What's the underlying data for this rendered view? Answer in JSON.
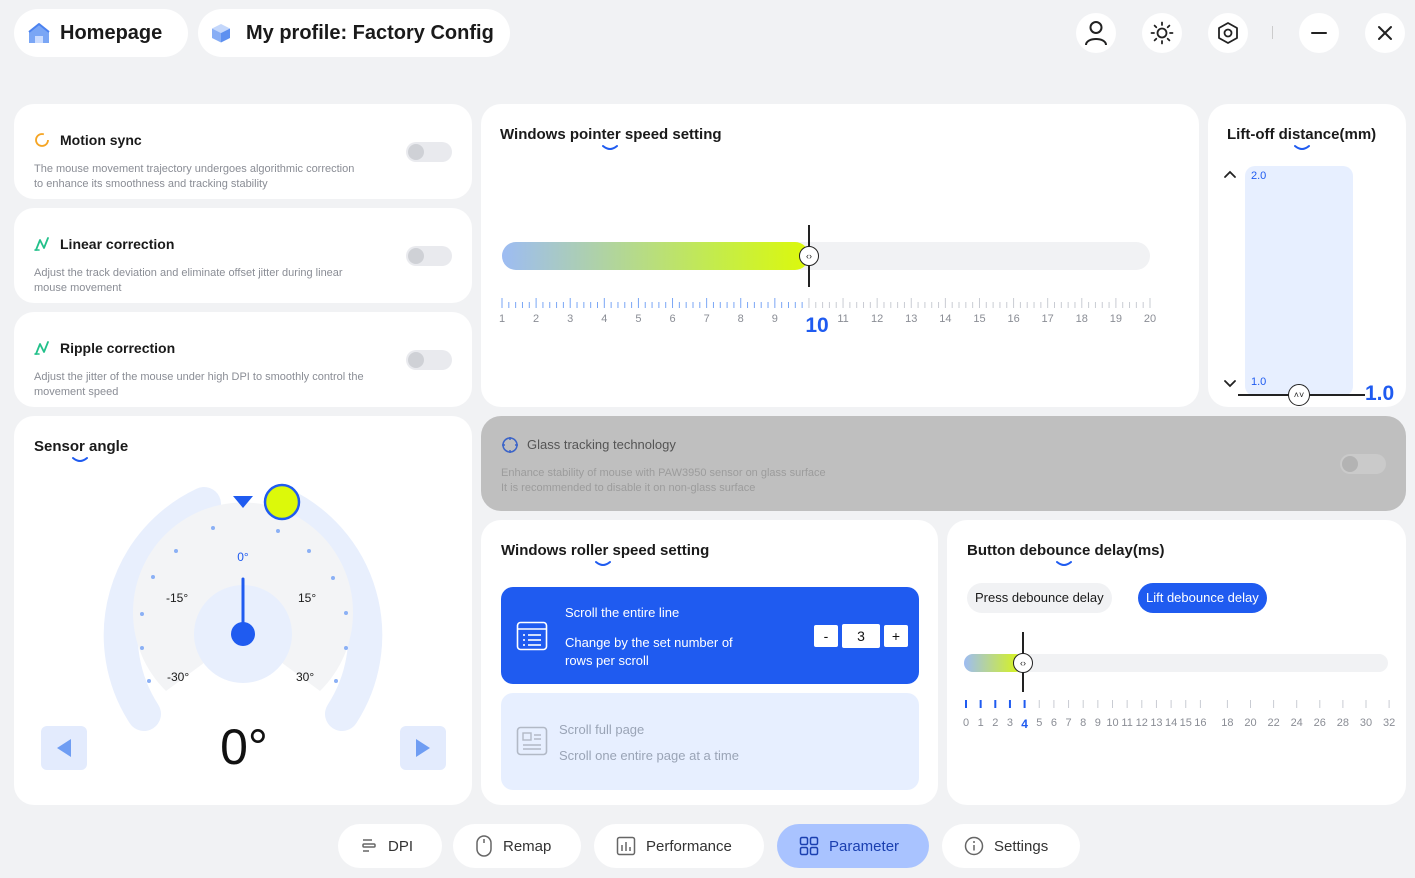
{
  "header": {
    "home_label": "Homepage",
    "profile_label": "My profile: Factory Config"
  },
  "motion_sync": {
    "title": "Motion sync",
    "desc_line1": "The mouse movement trajectory undergoes algorithmic correction",
    "desc_line2": "to enhance its smoothness and tracking stability",
    "enabled": false
  },
  "linear_correction": {
    "title": "Linear correction",
    "desc_line1": "Adjust the track deviation and eliminate offset jitter during linear",
    "desc_line2": "mouse movement",
    "enabled": false
  },
  "ripple_correction": {
    "title": "Ripple correction",
    "desc_line1": "Adjust the jitter of the mouse under high DPI to smoothly control the",
    "desc_line2": "movement speed",
    "enabled": false
  },
  "pointer_speed": {
    "title": "Windows pointer speed setting",
    "ticks": [
      "1",
      "2",
      "3",
      "4",
      "5",
      "6",
      "7",
      "8",
      "9",
      "10",
      "11",
      "12",
      "13",
      "14",
      "15",
      "16",
      "17",
      "18",
      "19",
      "20"
    ],
    "value": 10,
    "value_label": "10"
  },
  "liftoff": {
    "title": "Lift-off distance(mm)",
    "max_label": "2.0",
    "min_label": "1.0",
    "value": 1.0,
    "value_label": "1.0"
  },
  "glass_tracking": {
    "title": "Glass tracking technology",
    "desc_line1": "Enhance stability of mouse with PAW3950 sensor on glass surface",
    "desc_line2": "It is recommended to disable it on non-glass surface",
    "enabled": false
  },
  "sensor_angle": {
    "title": "Sensor angle",
    "labels": {
      "zero": "0°",
      "m15": "-15°",
      "p15": "15°",
      "m30": "-30°",
      "p30": "30°"
    },
    "value_label": "0°"
  },
  "roller_speed": {
    "title": "Windows roller speed setting",
    "option1_title": "Scroll the entire line",
    "option1_desc_line1": "Change by the set number of",
    "option1_desc_line2": "rows per scroll",
    "stepper_minus": "-",
    "stepper_value": "3",
    "stepper_plus": "+",
    "option2_title": "Scroll full page",
    "option2_desc": "Scroll one entire page at a time"
  },
  "debounce": {
    "title": "Button debounce delay(ms)",
    "tab_press": "Press debounce delay",
    "tab_lift": "Lift debounce delay",
    "ticks": [
      "0",
      "1",
      "2",
      "3",
      "4",
      "5",
      "6",
      "7",
      "8",
      "9",
      "10",
      "11",
      "12",
      "13",
      "14",
      "15",
      "16",
      "18",
      "20",
      "22",
      "24",
      "26",
      "28",
      "30",
      "32"
    ],
    "value": 4
  },
  "nav": {
    "dpi": "DPI",
    "remap": "Remap",
    "performance": "Performance",
    "parameter": "Parameter",
    "settings": "Settings"
  },
  "colors": {
    "accent": "#1f5bf0",
    "accent_light": "#a9c3ff",
    "slider_start": "#9dbcf3",
    "slider_end": "#dcf90a"
  }
}
